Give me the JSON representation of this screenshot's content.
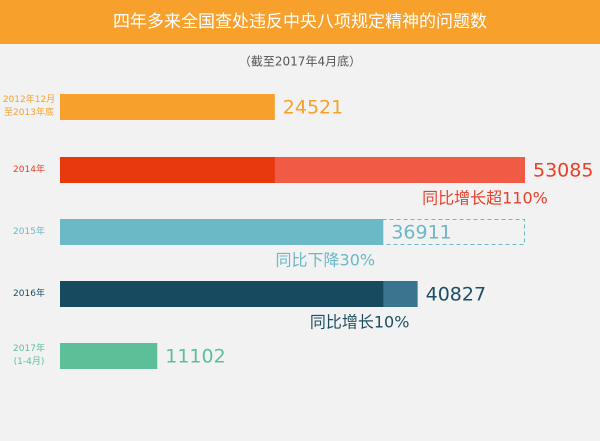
{
  "chart_data": {
    "type": "bar",
    "title": "四年多来全国查处违反中央八项规定精神的问题数",
    "subtitle": "（截至2017年4月底）",
    "categories": [
      "2012年12月\n至2013年底",
      "2014年",
      "2015年",
      "2016年",
      "2017年\n(1-4月)"
    ],
    "values": [
      24521,
      53085,
      36911,
      40827,
      11102
    ],
    "colors": [
      "#f7a12c",
      "#ef5b45",
      "#6bb8c7",
      "#3a7590",
      "#5dbf98"
    ],
    "label_colors": [
      "#f7a12c",
      "#e8402a",
      "#6bb8c7",
      "#1d4f63",
      "#5dbf98"
    ],
    "annotations": [
      null,
      "同比增长超110%",
      "同比下降30%",
      "同比增长10%",
      null
    ],
    "compare_styles": [
      null,
      "fill",
      "outline",
      "fill",
      null
    ],
    "compare_colors": [
      null,
      "#e8380d",
      "#6bb8c7",
      "#174a5e",
      null
    ],
    "title_color": "#f7a12c"
  }
}
